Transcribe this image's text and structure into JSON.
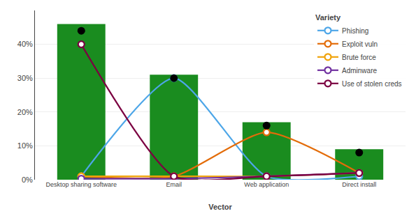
{
  "chart_data": {
    "type": "bar",
    "title": "Variety",
    "xlabel": "Vector",
    "categories": [
      "Desktop sharing software",
      "Email",
      "Web application",
      "Direct install"
    ],
    "series": [
      {
        "type": "bar",
        "color": "#1a8c1f",
        "values": [
          46,
          31,
          17,
          9
        ]
      },
      {
        "name": "Phishing",
        "type": "line",
        "marker": "circle",
        "color": "#4da6e8",
        "values": [
          1,
          30,
          1,
          1
        ]
      },
      {
        "name": "Exploit vuln",
        "type": "line",
        "marker": "circle",
        "color": "#e36c09",
        "values": [
          1,
          1,
          14,
          2
        ]
      },
      {
        "name": "Brute force",
        "type": "line",
        "marker": "circle",
        "color": "#f0a30a",
        "values": [
          1,
          1,
          1,
          2
        ]
      },
      {
        "name": "Adminware",
        "type": "line",
        "marker": "circle",
        "color": "#7030a0",
        "values": [
          0.3,
          0.3,
          1,
          2
        ]
      },
      {
        "name": "Use of stolen creds",
        "type": "line",
        "marker": "circle",
        "color": "#7b0041",
        "values": [
          40,
          1,
          1,
          2
        ]
      },
      {
        "type": "scatter",
        "marker": "circle",
        "color": "#000000",
        "values": [
          44,
          30,
          16,
          8
        ]
      }
    ],
    "ylim": [
      0,
      50
    ],
    "yticks": [
      {
        "value": 0,
        "label": "0%"
      },
      {
        "value": 10,
        "label": "10%"
      },
      {
        "value": 20,
        "label": "20%"
      },
      {
        "value": 30,
        "label": "30%"
      },
      {
        "value": 40,
        "label": "40%"
      }
    ],
    "grid": true,
    "legend": "upper right"
  }
}
